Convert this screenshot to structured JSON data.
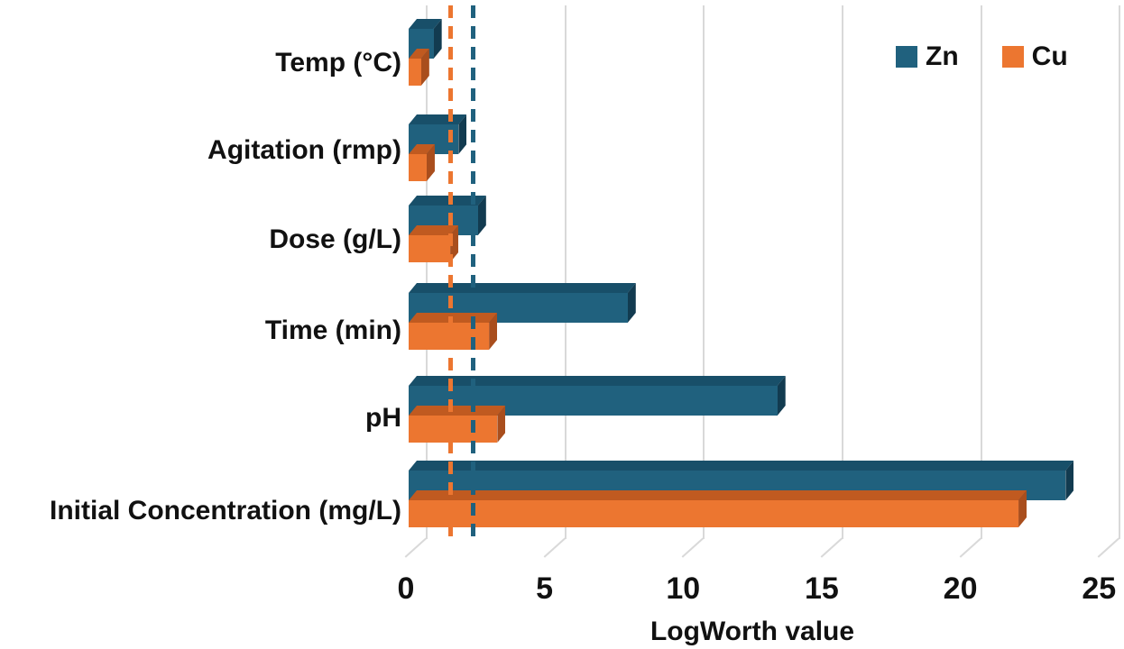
{
  "chart_data": {
    "type": "bar",
    "orientation": "horizontal",
    "style": "3d",
    "title": "",
    "xlabel": "LogWorth value",
    "ylabel": "",
    "xlim": [
      0,
      25
    ],
    "xticks": [
      0,
      5,
      10,
      15,
      20,
      25
    ],
    "grid": true,
    "categories": [
      "Temp (°C)",
      "Agitation (rmp)",
      "Dose (g/L)",
      "Time (min)",
      "pH",
      "Initial Concentration (mg/L)"
    ],
    "series": [
      {
        "name": "Zn",
        "color": "#20617E",
        "color_top": "#184F69",
        "color_side": "#123B50",
        "values": [
          0.9,
          1.8,
          2.5,
          7.9,
          13.3,
          23.7
        ]
      },
      {
        "name": "Cu",
        "color": "#EC7630",
        "color_top": "#C05A20",
        "color_side": "#A94E1D",
        "values": [
          0.45,
          0.65,
          1.5,
          2.9,
          3.2,
          22.0
        ]
      }
    ],
    "reference_lines": [
      {
        "series": "Cu",
        "value": 1.5,
        "color": "#EC7630",
        "style": "dashed"
      },
      {
        "series": "Zn",
        "value": 2.3,
        "color": "#20617E",
        "style": "dashed"
      }
    ],
    "legend": {
      "position": "top-right",
      "entries": [
        "Zn",
        "Cu"
      ]
    },
    "colors": {
      "background": "#FFFFFF",
      "gridline": "#D9D9D9",
      "text": "#111111"
    }
  }
}
